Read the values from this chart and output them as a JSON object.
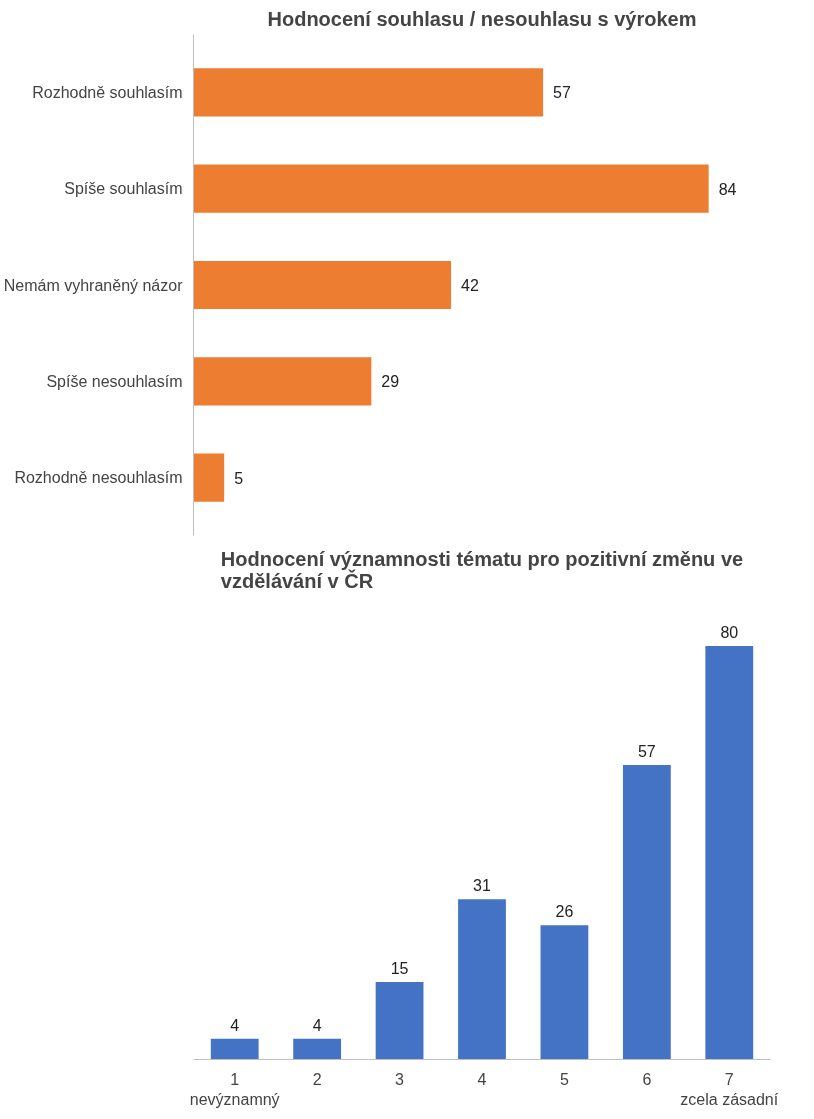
{
  "chart_data": [
    {
      "type": "bar",
      "title": "Hodnocení souhlasu / nesouhlasu s výrokem",
      "orientation": "horizontal",
      "categories": [
        "Rozhodně souhlasím",
        "Spíše souhlasím",
        "Nemám vyhraněný názor",
        "Spíše nesouhlasím",
        "Rozhodně nesouhlasím"
      ],
      "values": [
        57,
        84,
        42,
        29,
        5
      ],
      "color": "#ed7d31",
      "data_labels": true
    },
    {
      "type": "bar",
      "title": "Hodnocení významnosti tématu pro pozitivní změnu ve vzdělávání v ČR",
      "categories": [
        "1\nnevýznamný",
        "2",
        "3",
        "4",
        "5",
        "6",
        "7\nzcela zásadní"
      ],
      "values": [
        4,
        4,
        15,
        31,
        26,
        57,
        80
      ],
      "color": "#4472c4",
      "data_labels": true
    }
  ]
}
